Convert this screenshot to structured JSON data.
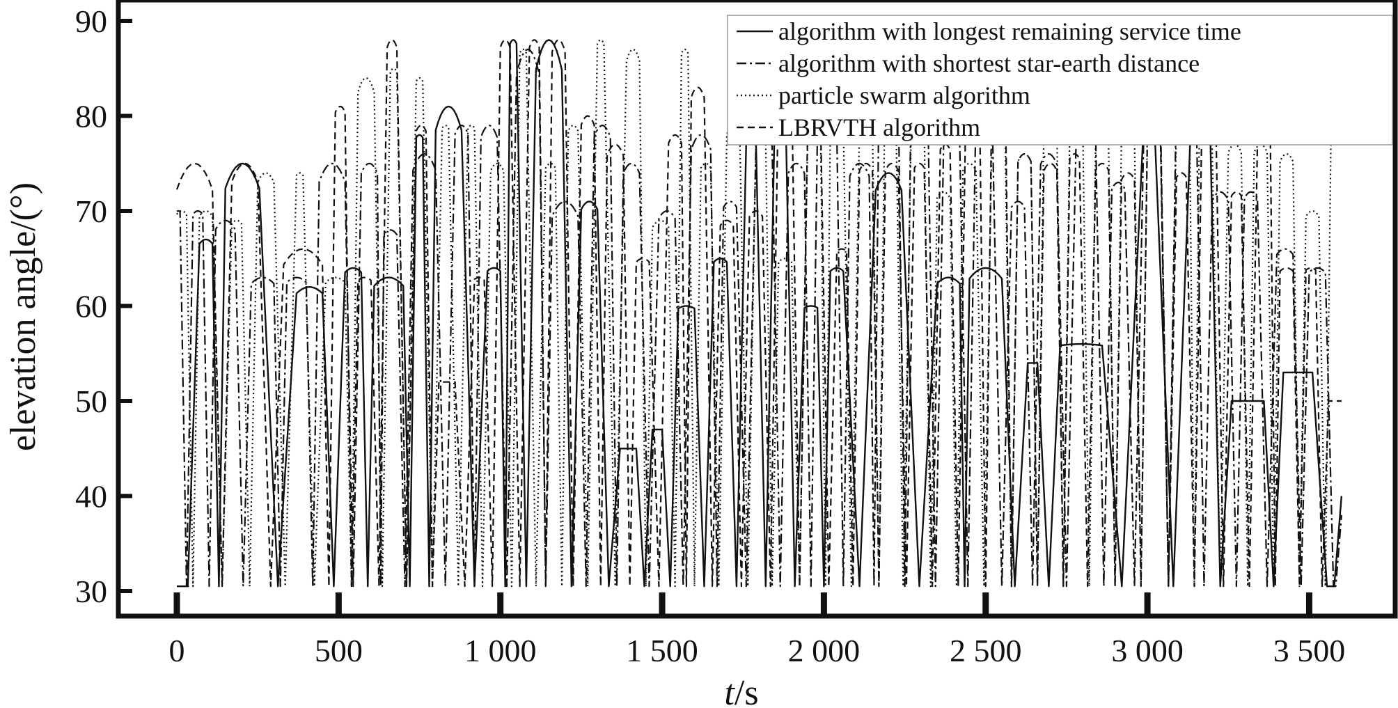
{
  "chart_data": {
    "type": "line",
    "title": "",
    "xlabel_italic": "t",
    "xlabel_rest": "/s",
    "ylabel": "elevation angle/(°)",
    "xlim": [
      -80,
      3700
    ],
    "ylim": [
      28,
      91
    ],
    "x_ticks": [
      0,
      500,
      1000,
      1500,
      2000,
      2500,
      3000,
      3500
    ],
    "x_tick_labels": [
      "0",
      "500",
      "1 000",
      "1 500",
      "2 000",
      "2 500",
      "3 000",
      "3 500"
    ],
    "y_ticks": [
      30,
      40,
      50,
      60,
      70,
      80,
      90
    ],
    "y_tick_labels": [
      "30",
      "40",
      "50",
      "60",
      "70",
      "80",
      "90"
    ],
    "grid": false,
    "legend_position": "top-right",
    "series": [
      {
        "name": "algorithm with longest remaining service time",
        "style": "solid",
        "arcs": [
          [
            0,
            35,
            30
          ],
          [
            70,
            110,
            67
          ],
          [
            150,
            255,
            75
          ],
          [
            370,
            450,
            62
          ],
          [
            520,
            570,
            64
          ],
          [
            610,
            700,
            63
          ],
          [
            740,
            760,
            78
          ],
          [
            800,
            880,
            81
          ],
          [
            960,
            1000,
            64
          ],
          [
            1030,
            1050,
            88
          ],
          [
            1110,
            1190,
            88
          ],
          [
            1250,
            1300,
            71
          ],
          [
            1370,
            1420,
            45
          ],
          [
            1470,
            1500,
            47
          ],
          [
            1550,
            1600,
            60
          ],
          [
            1660,
            1700,
            65
          ],
          [
            1760,
            1790,
            78
          ],
          [
            1850,
            1880,
            84
          ],
          [
            1940,
            1980,
            60
          ],
          [
            2020,
            2060,
            64
          ],
          [
            2160,
            2240,
            74
          ],
          [
            2350,
            2420,
            63
          ],
          [
            2450,
            2550,
            64
          ],
          [
            2630,
            2660,
            54
          ],
          [
            2730,
            2860,
            56
          ],
          [
            2990,
            3020,
            81
          ],
          [
            3140,
            3190,
            86
          ],
          [
            3260,
            3360,
            50
          ],
          [
            3420,
            3510,
            53
          ],
          [
            3600,
            3600,
            40
          ]
        ]
      },
      {
        "name": "algorithm with shortest star-earth distance",
        "style": "dashdot",
        "arcs": [
          [
            0,
            10,
            70
          ],
          [
            50,
            80,
            70
          ],
          [
            120,
            180,
            69
          ],
          [
            230,
            300,
            63
          ],
          [
            340,
            400,
            63
          ],
          [
            440,
            520,
            75
          ],
          [
            570,
            620,
            75
          ],
          [
            640,
            680,
            68
          ],
          [
            730,
            800,
            76
          ],
          [
            860,
            900,
            79
          ],
          [
            940,
            990,
            79
          ],
          [
            1050,
            1120,
            87
          ],
          [
            1160,
            1240,
            71
          ],
          [
            1290,
            1340,
            79
          ],
          [
            1380,
            1430,
            75
          ],
          [
            1490,
            1540,
            70
          ],
          [
            1590,
            1650,
            78
          ],
          [
            1690,
            1730,
            71
          ],
          [
            1790,
            1840,
            78
          ],
          [
            1890,
            1940,
            75
          ],
          [
            1980,
            2040,
            80
          ],
          [
            2080,
            2140,
            75
          ],
          [
            2170,
            2230,
            84
          ],
          [
            2270,
            2320,
            85
          ],
          [
            2370,
            2420,
            78
          ],
          [
            2470,
            2520,
            82
          ],
          [
            2580,
            2620,
            71
          ],
          [
            2670,
            2720,
            76
          ],
          [
            2780,
            2840,
            80
          ],
          [
            2890,
            2930,
            73
          ],
          [
            2990,
            3040,
            82
          ],
          [
            3090,
            3150,
            85
          ],
          [
            3200,
            3250,
            72
          ],
          [
            3300,
            3340,
            72
          ],
          [
            3400,
            3450,
            66
          ],
          [
            3500,
            3550,
            64
          ],
          [
            3600,
            3600,
            38
          ]
        ]
      },
      {
        "name": "particle swarm algorithm",
        "style": "dotted",
        "arcs": [
          [
            0,
            30,
            70
          ],
          [
            70,
            110,
            70
          ],
          [
            170,
            200,
            69
          ],
          [
            250,
            300,
            74
          ],
          [
            370,
            390,
            74
          ],
          [
            460,
            520,
            63
          ],
          [
            560,
            610,
            84
          ],
          [
            660,
            680,
            85
          ],
          [
            740,
            760,
            84
          ],
          [
            820,
            840,
            79
          ],
          [
            900,
            920,
            79
          ],
          [
            970,
            1010,
            75
          ],
          [
            1060,
            1080,
            87
          ],
          [
            1140,
            1170,
            75
          ],
          [
            1210,
            1240,
            79
          ],
          [
            1300,
            1320,
            88
          ],
          [
            1390,
            1430,
            87
          ],
          [
            1470,
            1520,
            69
          ],
          [
            1560,
            1580,
            87
          ],
          [
            1620,
            1650,
            75
          ],
          [
            1700,
            1740,
            79
          ],
          [
            1790,
            1820,
            78
          ],
          [
            1860,
            1900,
            65
          ],
          [
            1950,
            1990,
            79
          ],
          [
            2020,
            2060,
            80
          ],
          [
            2110,
            2150,
            80
          ],
          [
            2190,
            2220,
            87
          ],
          [
            2270,
            2310,
            80
          ],
          [
            2350,
            2390,
            72
          ],
          [
            2430,
            2470,
            75
          ],
          [
            2520,
            2560,
            80
          ],
          [
            2600,
            2640,
            76
          ],
          [
            2680,
            2720,
            80
          ],
          [
            2760,
            2800,
            80
          ],
          [
            2840,
            2880,
            78
          ],
          [
            2920,
            2960,
            79
          ],
          [
            3000,
            3040,
            80
          ],
          [
            3090,
            3130,
            81
          ],
          [
            3160,
            3200,
            78
          ],
          [
            3250,
            3290,
            77
          ],
          [
            3330,
            3370,
            77
          ],
          [
            3410,
            3450,
            76
          ],
          [
            3490,
            3530,
            70
          ],
          [
            3570,
            3600,
            86
          ]
        ]
      },
      {
        "name": "LBRVTH algorithm",
        "style": "dashed",
        "arcs": [
          [
            0,
            110,
            75
          ],
          [
            170,
            250,
            75
          ],
          [
            330,
            450,
            66
          ],
          [
            490,
            520,
            81
          ],
          [
            560,
            600,
            63
          ],
          [
            650,
            680,
            88
          ],
          [
            740,
            770,
            79
          ],
          [
            810,
            860,
            52
          ],
          [
            920,
            950,
            63
          ],
          [
            1000,
            1030,
            88
          ],
          [
            1090,
            1120,
            88
          ],
          [
            1160,
            1200,
            88
          ],
          [
            1250,
            1290,
            80
          ],
          [
            1330,
            1380,
            77
          ],
          [
            1420,
            1460,
            65
          ],
          [
            1520,
            1560,
            78
          ],
          [
            1590,
            1630,
            83
          ],
          [
            1680,
            1720,
            69
          ],
          [
            1770,
            1810,
            70
          ],
          [
            1860,
            1900,
            85
          ],
          [
            1950,
            1990,
            80
          ],
          [
            2040,
            2070,
            66
          ],
          [
            2110,
            2150,
            75
          ],
          [
            2190,
            2230,
            75
          ],
          [
            2280,
            2310,
            75
          ],
          [
            2360,
            2390,
            77
          ],
          [
            2440,
            2480,
            85
          ],
          [
            2520,
            2560,
            86
          ],
          [
            2600,
            2640,
            76
          ],
          [
            2680,
            2720,
            75
          ],
          [
            2760,
            2790,
            76
          ],
          [
            2840,
            2880,
            75
          ],
          [
            2920,
            2960,
            74
          ],
          [
            3000,
            3040,
            79
          ],
          [
            3090,
            3120,
            74
          ],
          [
            3170,
            3210,
            84
          ],
          [
            3260,
            3290,
            72
          ],
          [
            3340,
            3380,
            78
          ],
          [
            3410,
            3450,
            64
          ],
          [
            3490,
            3520,
            64
          ],
          [
            3560,
            3600,
            50
          ]
        ]
      }
    ]
  }
}
